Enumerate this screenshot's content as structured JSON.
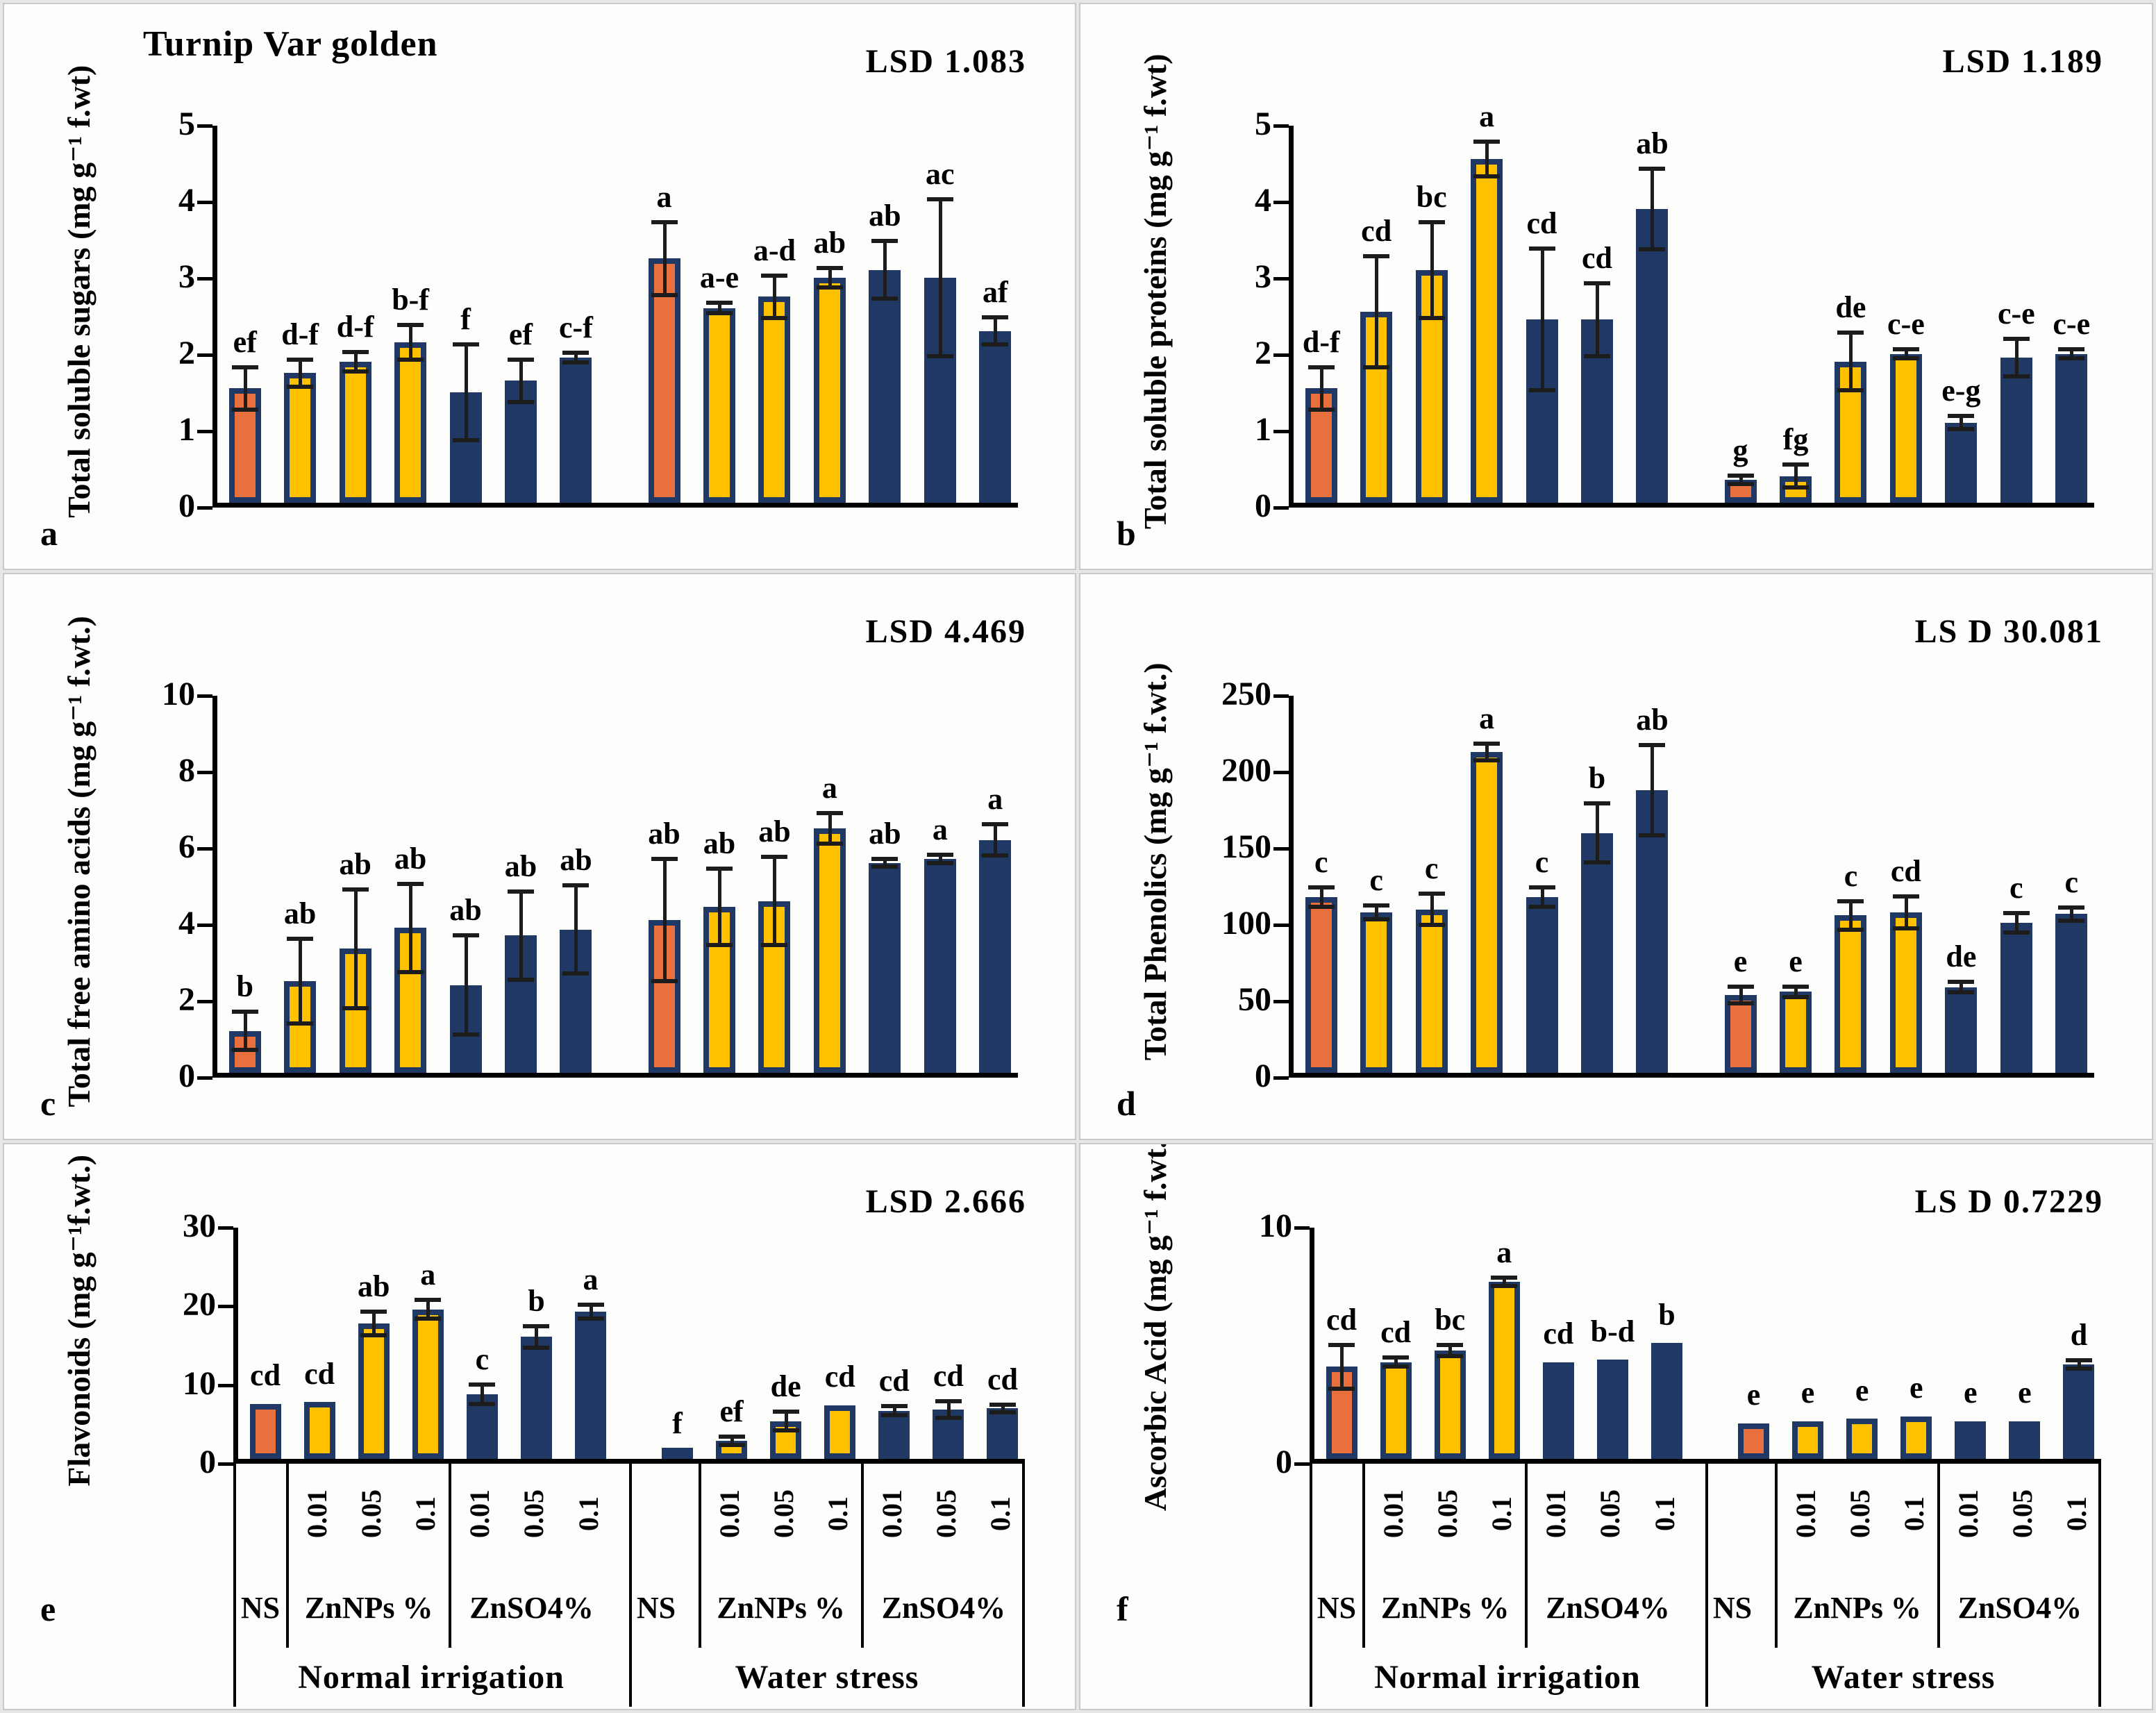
{
  "figure": {
    "title": "Turnip Var golden",
    "panel_letters": [
      "a",
      "b",
      "c",
      "d",
      "e",
      "f"
    ]
  },
  "colors": {
    "navy": "#1f3864",
    "yellow": "#ffc000",
    "orange": "#e7703c",
    "axis": "#000000",
    "error_bar": "#1c1c1c",
    "panel_background": "#fdfdfb",
    "page_background": "#e7e7e5"
  },
  "x_structure": {
    "bar_colors": [
      "orange",
      "yellow",
      "yellow",
      "yellow",
      "navy",
      "navy",
      "navy",
      "orange",
      "yellow",
      "yellow",
      "yellow",
      "navy",
      "navy",
      "navy"
    ],
    "tick_labels": [
      "",
      "0.01",
      "0.05",
      "0.1",
      "0.01",
      "0.05",
      "0.1",
      "",
      "0.01",
      "0.05",
      "0.1",
      "0.01",
      "0.05",
      "0.1"
    ],
    "groups": [
      {
        "label": "NS",
        "span": 1
      },
      {
        "label": "ZnNPs %",
        "span": 3
      },
      {
        "label": "ZnSO4%",
        "span": 3
      },
      {
        "label": "NS",
        "span": 1
      },
      {
        "label": "ZnNPs %",
        "span": 3
      },
      {
        "label": "ZnSO4%",
        "span": 3
      }
    ],
    "regimes": [
      {
        "label": "Normal irrigation",
        "span": 7
      },
      {
        "label": "Water stress",
        "span": 7
      }
    ]
  },
  "chart_data": [
    {
      "id": "a",
      "type": "bar",
      "title": "Turnip Var golden",
      "lsd": "LSD 1.083",
      "ylabel": "Total soluble sugars (mg g⁻¹ f.wt)",
      "ylim": [
        0,
        5
      ],
      "yticks": [
        0,
        1,
        2,
        3,
        4,
        5
      ],
      "values": [
        1.5,
        1.7,
        1.85,
        2.1,
        1.45,
        1.6,
        1.9,
        3.2,
        2.55,
        2.7,
        2.95,
        3.05,
        2.95,
        2.25
      ],
      "errors": [
        0.25,
        0.15,
        0.1,
        0.2,
        0.6,
        0.25,
        0.04,
        0.45,
        0.04,
        0.25,
        0.1,
        0.35,
        1.0,
        0.15
      ],
      "letters": [
        "ef",
        "d-f",
        "d-f",
        "b-f",
        "f",
        "ef",
        "c-f",
        "a",
        "a-e",
        "a-d",
        "ab",
        "ab",
        "ac",
        "af"
      ],
      "show_xaxis": false
    },
    {
      "id": "b",
      "type": "bar",
      "title": "",
      "lsd": "LSD 1.189",
      "ylabel": "Total soluble proteins (mg g⁻¹ f.wt)",
      "ylim": [
        0,
        5
      ],
      "yticks": [
        0,
        1,
        2,
        3,
        4,
        5
      ],
      "values": [
        1.5,
        2.5,
        3.05,
        4.5,
        2.4,
        2.4,
        3.85,
        0.3,
        0.35,
        1.85,
        1.95,
        1.05,
        1.9,
        1.95
      ],
      "errors": [
        0.25,
        0.7,
        0.6,
        0.2,
        0.9,
        0.45,
        0.5,
        0.03,
        0.12,
        0.35,
        0.03,
        0.06,
        0.22,
        0.03
      ],
      "letters": [
        "d-f",
        "cd",
        "bc",
        "a",
        "cd",
        "cd",
        "ab",
        "g",
        "fg",
        "de",
        "c-e",
        "e-g",
        "c-e",
        "c-e"
      ],
      "show_xaxis": false
    },
    {
      "id": "c",
      "type": "bar",
      "title": "",
      "lsd": "LSD 4.469",
      "ylabel": "Total free amino acids (mg g⁻¹ f.wt.)",
      "ylim": [
        0,
        10
      ],
      "yticks": [
        0,
        2,
        4,
        6,
        8,
        10
      ],
      "values": [
        1.1,
        2.4,
        3.25,
        3.8,
        2.3,
        3.6,
        3.75,
        4.0,
        4.35,
        4.5,
        6.4,
        5.5,
        5.6,
        6.1
      ],
      "errors": [
        0.45,
        1.05,
        1.5,
        1.1,
        1.25,
        1.1,
        1.1,
        1.55,
        0.95,
        1.1,
        0.35,
        0.05,
        0.05,
        0.35
      ],
      "letters": [
        "b",
        "ab",
        "ab",
        "ab",
        "ab",
        "ab",
        "ab",
        "ab",
        "ab",
        "ab",
        "a",
        "ab",
        "a",
        "a"
      ],
      "show_xaxis": false
    },
    {
      "id": "d",
      "type": "bar",
      "title": "",
      "lsd": "LS D 30.081",
      "ylabel": "Total Phenolics (mg g⁻¹ f.wt.)",
      "ylim": [
        0,
        250
      ],
      "yticks": [
        0,
        50,
        100,
        150,
        200,
        250
      ],
      "values": [
        115,
        105,
        107,
        210,
        115,
        157,
        185,
        51,
        53,
        103,
        105,
        56,
        98,
        104
      ],
      "errors": [
        5,
        3,
        9,
        4,
        5,
        18,
        28,
        4,
        2,
        8,
        9,
        2,
        5,
        3
      ],
      "letters": [
        "c",
        "c",
        "c",
        "a",
        "c",
        "b",
        "ab",
        "e",
        "e",
        "c",
        "cd",
        "de",
        "c",
        "c"
      ],
      "show_xaxis": false
    },
    {
      "id": "e",
      "type": "bar",
      "title": "",
      "lsd": "LSD 2.666",
      "ylabel": "Flavonoids (mg g⁻¹f.wt.)",
      "ylim": [
        0,
        30
      ],
      "yticks": [
        0,
        10,
        20,
        30
      ],
      "values": [
        7,
        7.2,
        17.2,
        19,
        8.2,
        15.5,
        18.7,
        1,
        2.3,
        4.8,
        6.8,
        6.1,
        6.3,
        6.4
      ],
      "errors": [
        0.15,
        0.15,
        1.2,
        0.9,
        1.0,
        1.1,
        0.6,
        0.1,
        0.3,
        0.9,
        0.15,
        0.3,
        0.8,
        0.2
      ],
      "letters": [
        "cd",
        "cd",
        "ab",
        "a",
        "c",
        "b",
        "a",
        "f",
        "ef",
        "de",
        "cd",
        "cd",
        "cd",
        "cd"
      ],
      "show_xaxis": true
    },
    {
      "id": "f",
      "type": "bar",
      "title": "",
      "lsd": "LS D 0.7229",
      "ylabel": "Ascorbic Acid (mg g⁻¹ f.wt.)",
      "ylim": [
        0,
        10
      ],
      "yticks": [
        0,
        10
      ],
      "values": [
        3.9,
        4.1,
        4.6,
        7.5,
        4.1,
        4.2,
        4.9,
        1.5,
        1.6,
        1.7,
        1.8,
        1.6,
        1.6,
        4.0
      ],
      "errors": [
        0.85,
        0.1,
        0.15,
        0.1,
        0.05,
        0.05,
        0.05,
        0.05,
        0.05,
        0.05,
        0.05,
        0.05,
        0.05,
        0.1
      ],
      "letters": [
        "cd",
        "cd",
        "bc",
        "a",
        "cd",
        "b-d",
        "b",
        "e",
        "e",
        "e",
        "e",
        "e",
        "e",
        "d"
      ],
      "show_xaxis": true
    }
  ]
}
